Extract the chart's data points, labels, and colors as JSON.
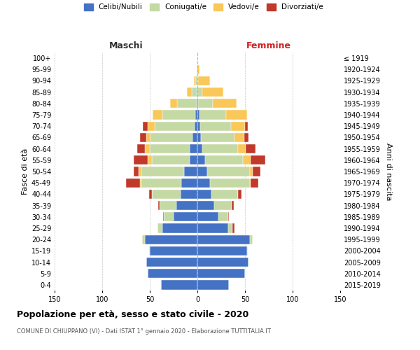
{
  "age_groups_bottom_to_top": [
    "0-4",
    "5-9",
    "10-14",
    "15-19",
    "20-24",
    "25-29",
    "30-34",
    "35-39",
    "40-44",
    "45-49",
    "50-54",
    "55-59",
    "60-64",
    "65-69",
    "70-74",
    "75-79",
    "80-84",
    "85-89",
    "90-94",
    "95-99",
    "100+"
  ],
  "birth_years_bottom_to_top": [
    "2015-2019",
    "2010-2014",
    "2005-2009",
    "2000-2004",
    "1995-1999",
    "1990-1994",
    "1985-1989",
    "1980-1984",
    "1975-1979",
    "1970-1974",
    "1965-1969",
    "1960-1964",
    "1955-1959",
    "1950-1954",
    "1945-1949",
    "1940-1944",
    "1935-1939",
    "1930-1934",
    "1925-1929",
    "1920-1924",
    "≤ 1919"
  ],
  "maschi": {
    "celibi": [
      38,
      52,
      54,
      50,
      55,
      37,
      25,
      22,
      18,
      17,
      14,
      8,
      8,
      5,
      3,
      2,
      1,
      1,
      0,
      0,
      0
    ],
    "coniugati": [
      0,
      0,
      0,
      1,
      3,
      5,
      10,
      18,
      30,
      42,
      45,
      40,
      42,
      44,
      42,
      35,
      20,
      5,
      2,
      1,
      0
    ],
    "vedovi": [
      0,
      0,
      0,
      0,
      0,
      0,
      0,
      0,
      0,
      1,
      3,
      4,
      5,
      5,
      7,
      10,
      8,
      5,
      2,
      0,
      0
    ],
    "divorziati": [
      0,
      0,
      0,
      0,
      0,
      0,
      1,
      1,
      3,
      15,
      5,
      15,
      8,
      6,
      5,
      0,
      0,
      0,
      0,
      0,
      0
    ]
  },
  "femmine": {
    "nubili": [
      33,
      50,
      54,
      52,
      55,
      32,
      22,
      18,
      15,
      13,
      10,
      8,
      5,
      4,
      3,
      2,
      1,
      0,
      0,
      0,
      0
    ],
    "coniugate": [
      0,
      0,
      0,
      1,
      3,
      5,
      10,
      18,
      28,
      42,
      45,
      40,
      38,
      35,
      32,
      28,
      15,
      5,
      1,
      0,
      0
    ],
    "vedove": [
      0,
      0,
      0,
      0,
      0,
      0,
      0,
      0,
      0,
      1,
      3,
      8,
      8,
      10,
      15,
      22,
      25,
      22,
      12,
      2,
      0
    ],
    "divorziate": [
      0,
      0,
      0,
      0,
      0,
      2,
      1,
      2,
      3,
      8,
      8,
      15,
      10,
      5,
      3,
      0,
      0,
      0,
      0,
      0,
      0
    ]
  },
  "colors": {
    "celibi": "#4472C4",
    "coniugati": "#C5D9A5",
    "vedovi": "#FAC858",
    "divorziati": "#C0392B"
  },
  "xlim": 150,
  "title": "Popolazione per età, sesso e stato civile - 2020",
  "subtitle": "COMUNE DI CHIUPPANO (VI) - Dati ISTAT 1° gennaio 2020 - Elaborazione TUTTITALIA.IT",
  "ylabel_left": "Fasce di età",
  "ylabel_right": "Anni di nascita",
  "xlabel_left": "Maschi",
  "xlabel_right": "Femmine",
  "legend_labels": [
    "Celibi/Nubili",
    "Coniugati/e",
    "Vedovi/e",
    "Divorziati/e"
  ],
  "background_color": "#ffffff",
  "grid_color": "#cccccc"
}
